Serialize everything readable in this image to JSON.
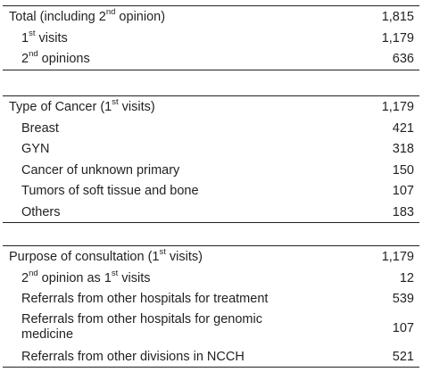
{
  "sections": [
    {
      "rows": [
        {
          "pre": "Total (including 2",
          "sup": "nd",
          "post": " opinion)",
          "value": "1,815"
        },
        {
          "pre": "1",
          "sup": "st",
          "post": " visits",
          "value": "1,179"
        },
        {
          "pre": "2",
          "sup": "nd",
          "post": " opinions",
          "value": "636"
        }
      ]
    },
    {
      "rows": [
        {
          "pre": "Type of Cancer (1",
          "sup": "st",
          "post": " visits)",
          "value": "1,179"
        },
        {
          "pre": "Breast",
          "sup": "",
          "post": "",
          "value": "421"
        },
        {
          "pre": "GYN",
          "sup": "",
          "post": "",
          "value": "318"
        },
        {
          "pre": "Cancer of unknown primary",
          "sup": "",
          "post": "",
          "value": "150"
        },
        {
          "pre": "Tumors of soft tissue and bone",
          "sup": "",
          "post": "",
          "value": "107"
        },
        {
          "pre": "Others",
          "sup": "",
          "post": "",
          "value": "183"
        }
      ]
    },
    {
      "rows": [
        {
          "pre": "Purpose of consultation (1",
          "sup": "st",
          "post": " visits)",
          "value": "1,179"
        },
        {
          "pre": "2",
          "sup": "nd",
          "post": " opinion as 1",
          "sup2": "st",
          "post2": " visits",
          "value": "12"
        },
        {
          "pre": "Referrals from other hospitals for treatment",
          "sup": "",
          "post": "",
          "value": "539"
        },
        {
          "pre": "Referrals from other hospitals for genomic",
          "line2": "medicine",
          "sup": "",
          "post": "",
          "value": "107"
        },
        {
          "pre": "Referrals from other divisions in NCCH",
          "sup": "",
          "post": "",
          "value": "521"
        }
      ]
    }
  ]
}
